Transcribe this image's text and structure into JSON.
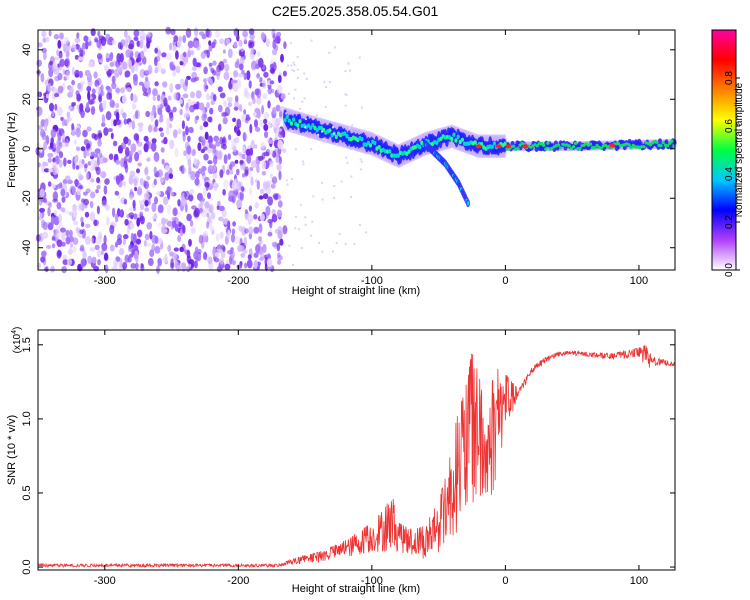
{
  "title": "C2E5.2025.358.05.54.G01",
  "chart_data": [
    {
      "type": "heatmap",
      "xlabel": "Height of straight line (km)",
      "ylabel": "Frequency (Hz)",
      "xlim": [
        -350,
        127
      ],
      "ylim": [
        -49,
        48
      ],
      "x_ticks": [
        -300,
        -200,
        -100,
        0,
        100
      ],
      "x_tick_labels": [
        "-300",
        "-200",
        "-100",
        "0",
        "100"
      ],
      "y_ticks": [
        -40,
        -20,
        0,
        20,
        40
      ],
      "y_tick_labels": [
        "-40",
        "-20",
        "0",
        "20",
        "40"
      ],
      "colorbar": {
        "label": "Normalized spectral amplitude",
        "range": [
          0,
          1
        ],
        "ticks": [
          0.0,
          0.2,
          0.4,
          0.6,
          0.8
        ],
        "tick_labels": [
          "0.0",
          "0.2",
          "0.4",
          "0.6",
          "0.8"
        ],
        "colormap": [
          "#ffffff",
          "#b040ff",
          "#0000ff",
          "#00c8ff",
          "#00ff40",
          "#ffff00",
          "#ff8000",
          "#ff0000",
          "#ff00a0"
        ]
      },
      "features": {
        "noise_region_x": [
          -350,
          -165
        ],
        "signal_track": [
          {
            "x": -165,
            "y": 12
          },
          {
            "x": -140,
            "y": 8
          },
          {
            "x": -120,
            "y": 5
          },
          {
            "x": -100,
            "y": 2
          },
          {
            "x": -80,
            "y": -3
          },
          {
            "x": -60,
            "y": 2
          },
          {
            "x": -40,
            "y": 5
          },
          {
            "x": -20,
            "y": 1
          },
          {
            "x": 0,
            "y": 1
          },
          {
            "x": 50,
            "y": 1
          },
          {
            "x": 127,
            "y": 2
          }
        ],
        "branch_track": [
          {
            "x": -60,
            "y": 2
          },
          {
            "x": -45,
            "y": -6
          },
          {
            "x": -35,
            "y": -14
          },
          {
            "x": -28,
            "y": -22
          }
        ]
      },
      "grid": false
    },
    {
      "type": "line",
      "xlabel": "Height of straight line (km)",
      "ylabel": "SNR (10 * v/v)",
      "yscale_label": "(x10",
      "yscale_exp": "4",
      "yscale_close": ")",
      "xlim": [
        -350,
        127
      ],
      "ylim": [
        -0.02,
        1.6
      ],
      "x_ticks": [
        -300,
        -200,
        -100,
        0,
        100
      ],
      "x_tick_labels": [
        "-300",
        "-200",
        "-100",
        "0",
        "100"
      ],
      "y_ticks": [
        0.0,
        0.5,
        1.0,
        1.5
      ],
      "y_tick_labels": [
        "0.0",
        "0.5",
        "1.0",
        "1.5"
      ],
      "series_color": "#ee3333",
      "envelope": {
        "x": [
          -350,
          -300,
          -250,
          -200,
          -170,
          -160,
          -150,
          -140,
          -130,
          -120,
          -110,
          -100,
          -90,
          -85,
          -80,
          -70,
          -60,
          -50,
          -45,
          -40,
          -30,
          -25,
          -20,
          -15,
          -10,
          -5,
          0,
          10,
          20,
          30,
          40,
          50,
          60,
          80,
          100,
          105,
          110,
          127
        ],
        "y": [
          0.02,
          0.02,
          0.02,
          0.02,
          0.02,
          0.05,
          0.08,
          0.1,
          0.14,
          0.18,
          0.24,
          0.3,
          0.4,
          0.5,
          0.3,
          0.25,
          0.28,
          0.45,
          0.6,
          0.9,
          1.2,
          1.45,
          1.3,
          1.1,
          1.25,
          1.35,
          1.3,
          1.2,
          1.35,
          1.42,
          1.45,
          1.46,
          1.45,
          1.44,
          1.48,
          1.5,
          1.42,
          1.38
        ],
        "floor": [
          0.0,
          0.0,
          0.0,
          0.0,
          0.0,
          0.01,
          0.02,
          0.03,
          0.05,
          0.06,
          0.08,
          0.1,
          0.1,
          0.12,
          0.1,
          0.08,
          0.05,
          0.1,
          0.15,
          0.2,
          0.3,
          0.4,
          0.4,
          0.35,
          0.45,
          0.7,
          0.9,
          1.15,
          1.3,
          1.38,
          1.42,
          1.43,
          1.42,
          1.4,
          1.42,
          1.3,
          1.36,
          1.35
        ]
      }
    }
  ]
}
